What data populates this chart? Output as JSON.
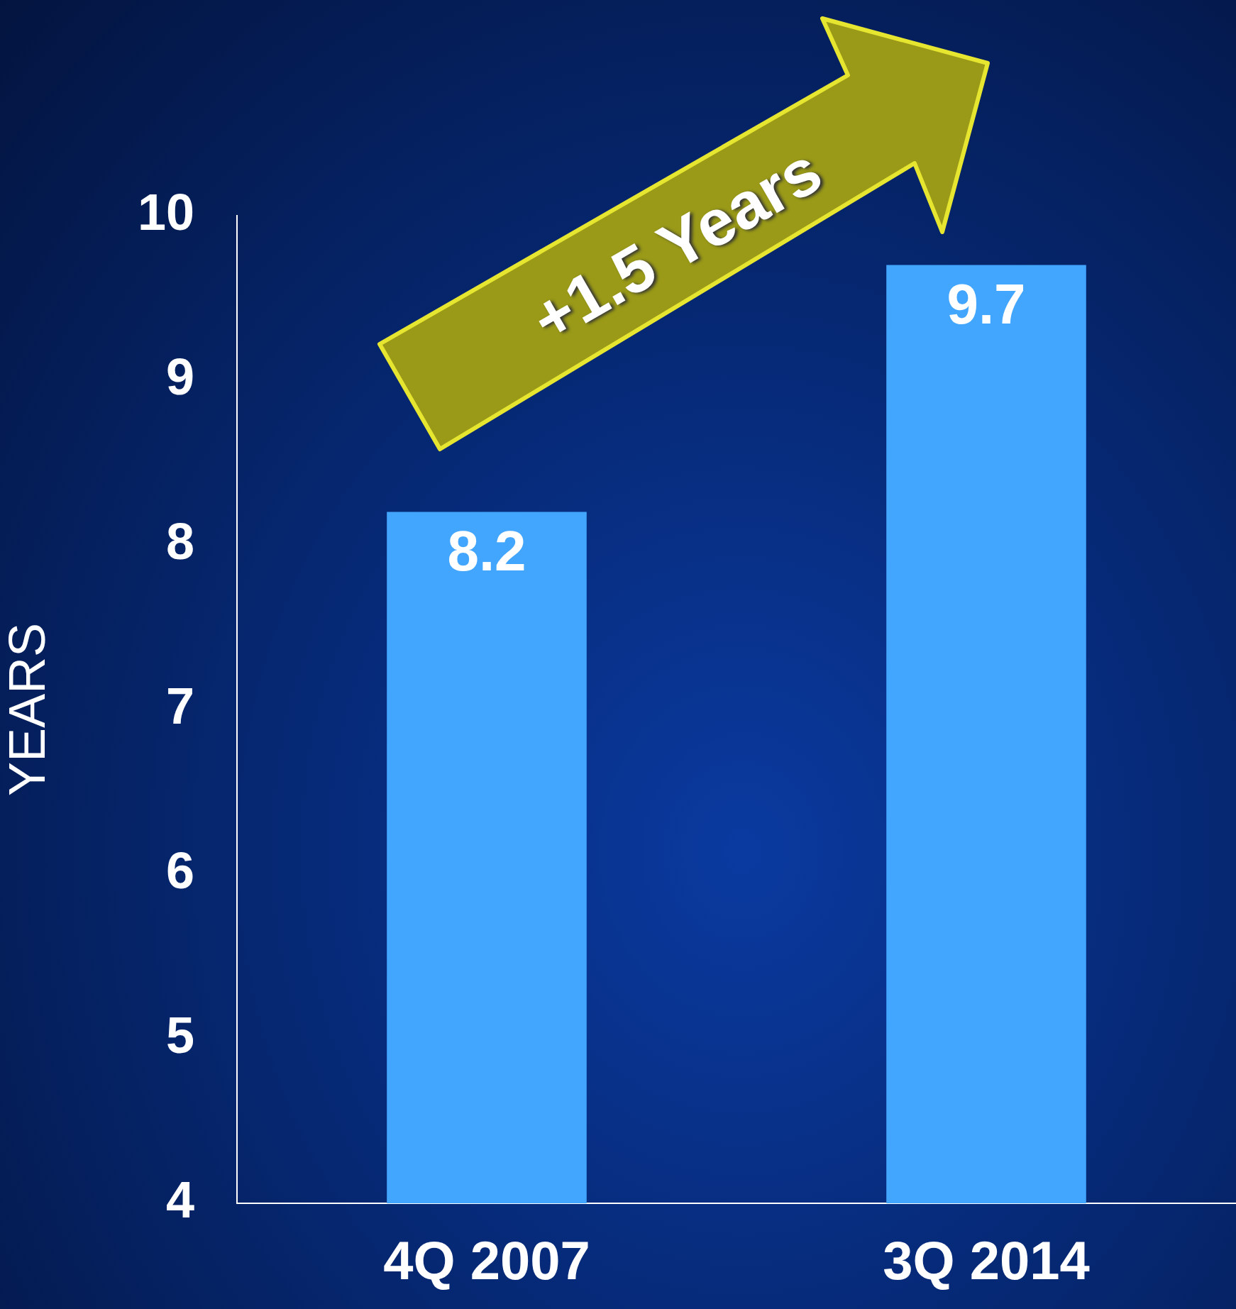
{
  "chart_data": {
    "type": "bar",
    "ylabel": "YEARS",
    "categories": [
      "4Q 2007",
      "3Q 2014"
    ],
    "values": [
      8.2,
      9.7
    ],
    "color": "#42a5fe",
    "ylim": [
      4,
      10
    ],
    "yticks": [
      4,
      5,
      6,
      7,
      8,
      9,
      10
    ],
    "data_labels": true,
    "annotations": [
      "+1.5 Years"
    ]
  }
}
